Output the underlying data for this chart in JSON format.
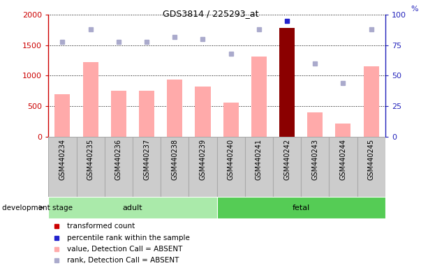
{
  "title": "GDS3814 / 225293_at",
  "samples": [
    "GSM440234",
    "GSM440235",
    "GSM440236",
    "GSM440237",
    "GSM440238",
    "GSM440239",
    "GSM440240",
    "GSM440241",
    "GSM440242",
    "GSM440243",
    "GSM440244",
    "GSM440245"
  ],
  "bar_values": [
    700,
    1220,
    750,
    750,
    940,
    820,
    555,
    1310,
    1780,
    400,
    220,
    1150
  ],
  "bar_colors": [
    "#ffaaaa",
    "#ffaaaa",
    "#ffaaaa",
    "#ffaaaa",
    "#ffaaaa",
    "#ffaaaa",
    "#ffaaaa",
    "#ffaaaa",
    "#8b0000",
    "#ffaaaa",
    "#ffaaaa",
    "#ffaaaa"
  ],
  "rank_values": [
    78,
    88,
    78,
    78,
    82,
    80,
    68,
    88,
    95,
    60,
    44,
    88
  ],
  "rank_colors": [
    "#aaaacc",
    "#aaaacc",
    "#aaaacc",
    "#aaaacc",
    "#aaaacc",
    "#aaaacc",
    "#aaaacc",
    "#aaaacc",
    "#2222cc",
    "#aaaacc",
    "#aaaacc",
    "#aaaacc"
  ],
  "ylim_left": [
    0,
    2000
  ],
  "ylim_right": [
    0,
    100
  ],
  "yticks_left": [
    0,
    500,
    1000,
    1500,
    2000
  ],
  "yticks_right": [
    0,
    25,
    50,
    75,
    100
  ],
  "groups": [
    {
      "label": "adult",
      "start": 0,
      "end": 6,
      "color": "#aaeaaa"
    },
    {
      "label": "fetal",
      "start": 6,
      "end": 12,
      "color": "#55cc55"
    }
  ],
  "group_label_prefix": "development stage",
  "legend_items": [
    {
      "label": "transformed count",
      "color": "#cc0000"
    },
    {
      "label": "percentile rank within the sample",
      "color": "#2222cc"
    },
    {
      "label": "value, Detection Call = ABSENT",
      "color": "#ffaaaa"
    },
    {
      "label": "rank, Detection Call = ABSENT",
      "color": "#aaaacc"
    }
  ],
  "left_axis_color": "#cc0000",
  "right_axis_color": "#2222bb",
  "label_box_color": "#cccccc",
  "label_box_edge": "#aaaaaa"
}
